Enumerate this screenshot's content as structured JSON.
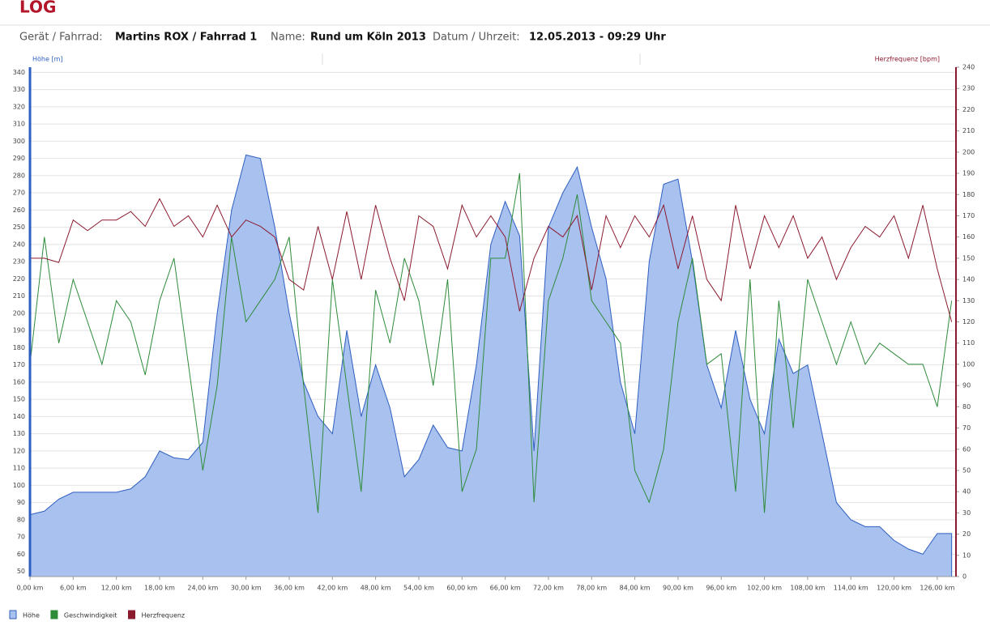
{
  "header": {
    "title": "LOG",
    "device_label": "Gerät / Fahrrad:",
    "device": "Martins ROX  / Fahrrad 1",
    "name_label": "Name:",
    "name": "Rund um Köln 2013",
    "date_label": "Datum / Uhrzeit:",
    "date": "12.05.2013 - 09:29 Uhr"
  },
  "chart_data": {
    "type": "line",
    "y_label": "Höhe [m]",
    "y2_label": "Herzfrequenz [bpm]",
    "x": [
      0,
      2,
      4,
      6,
      8,
      10,
      12,
      14,
      16,
      18,
      20,
      22,
      24,
      26,
      28,
      30,
      32,
      34,
      36,
      38,
      40,
      42,
      44,
      46,
      48,
      50,
      52,
      54,
      56,
      58,
      60,
      62,
      64,
      66,
      68,
      70,
      72,
      74,
      76,
      78,
      80,
      82,
      84,
      86,
      88,
      90,
      92,
      94,
      96,
      98,
      100,
      102,
      104,
      106,
      108,
      110,
      112,
      114,
      116,
      118,
      120,
      122,
      124,
      126,
      128
    ],
    "xlim": [
      0,
      128.6
    ],
    "xticks": [
      {
        "value": 0,
        "label": "0,00 km"
      },
      {
        "value": 6,
        "label": "6,00 km"
      },
      {
        "value": 12,
        "label": "12,00 km"
      },
      {
        "value": 18,
        "label": "18,00 km"
      },
      {
        "value": 24,
        "label": "24,00 km"
      },
      {
        "value": 30,
        "label": "30,00 km"
      },
      {
        "value": 36,
        "label": "36,00 km"
      },
      {
        "value": 42,
        "label": "42,00 km"
      },
      {
        "value": 48,
        "label": "48,00 km"
      },
      {
        "value": 54,
        "label": "54,00 km"
      },
      {
        "value": 60,
        "label": "60,00 km"
      },
      {
        "value": 66,
        "label": "66,00 km"
      },
      {
        "value": 72,
        "label": "72,00 km"
      },
      {
        "value": 78,
        "label": "78,00 km"
      },
      {
        "value": 84,
        "label": "84,00 km"
      },
      {
        "value": 90,
        "label": "90,00 km"
      },
      {
        "value": 96,
        "label": "96,00 km"
      },
      {
        "value": 102,
        "label": "102,00 km"
      },
      {
        "value": 108,
        "label": "108,00 km"
      },
      {
        "value": 114,
        "label": "114,00 km"
      },
      {
        "value": 120,
        "label": "120,00 km"
      },
      {
        "value": 126,
        "label": "126,00 km"
      }
    ],
    "ylim": [
      47,
      343
    ],
    "yticks": [
      50,
      60,
      70,
      80,
      90,
      100,
      110,
      120,
      130,
      140,
      150,
      160,
      170,
      180,
      190,
      200,
      210,
      220,
      230,
      240,
      250,
      260,
      270,
      280,
      290,
      300,
      310,
      320,
      330,
      340
    ],
    "y2lim": [
      0,
      240
    ],
    "y2ticks": [
      0,
      10,
      20,
      30,
      40,
      50,
      60,
      70,
      80,
      90,
      100,
      110,
      120,
      130,
      140,
      150,
      160,
      170,
      180,
      190,
      200,
      210,
      220,
      230,
      240
    ],
    "grid": true,
    "series": [
      {
        "name": "Höhe",
        "kind": "area",
        "axis": "y",
        "color": "#2e5fc0",
        "fill": "#a9c1ef",
        "values": [
          83,
          85,
          92,
          96,
          96,
          96,
          96,
          98,
          105,
          120,
          116,
          115,
          125,
          200,
          260,
          292,
          290,
          250,
          200,
          160,
          140,
          130,
          190,
          140,
          170,
          145,
          105,
          115,
          135,
          122,
          120,
          170,
          240,
          265,
          245,
          120,
          250,
          270,
          285,
          250,
          220,
          160,
          130,
          230,
          275,
          278,
          230,
          170,
          145,
          190,
          150,
          130,
          185,
          165,
          170,
          130,
          90,
          80,
          76,
          76,
          68,
          63,
          60,
          72,
          72
        ]
      },
      {
        "name": "Geschwindigkeit",
        "kind": "line",
        "axis": "y2",
        "color": "#2e8b3a",
        "values": [
          100,
          160,
          110,
          140,
          120,
          100,
          130,
          120,
          95,
          130,
          150,
          100,
          50,
          90,
          160,
          120,
          130,
          140,
          160,
          90,
          30,
          140,
          90,
          40,
          135,
          110,
          150,
          130,
          90,
          140,
          40,
          60,
          150,
          150,
          190,
          35,
          130,
          150,
          180,
          130,
          120,
          110,
          50,
          35,
          60,
          120,
          150,
          100,
          105,
          40,
          140,
          30,
          130,
          70,
          140,
          120,
          100,
          120,
          100,
          110,
          105,
          100,
          100,
          80,
          130
        ]
      },
      {
        "name": "Herzfrequenz",
        "kind": "line",
        "axis": "y2",
        "color": "#8b1a2e",
        "values": [
          150,
          150,
          148,
          168,
          163,
          168,
          168,
          172,
          165,
          178,
          165,
          170,
          160,
          175,
          160,
          168,
          165,
          160,
          140,
          135,
          165,
          140,
          172,
          140,
          175,
          150,
          130,
          170,
          165,
          145,
          175,
          160,
          170,
          160,
          125,
          150,
          165,
          160,
          170,
          135,
          170,
          155,
          170,
          160,
          175,
          145,
          170,
          140,
          130,
          175,
          145,
          170,
          155,
          170,
          150,
          160,
          140,
          155,
          165,
          160,
          170,
          150,
          175,
          145,
          120
        ]
      }
    ]
  }
}
